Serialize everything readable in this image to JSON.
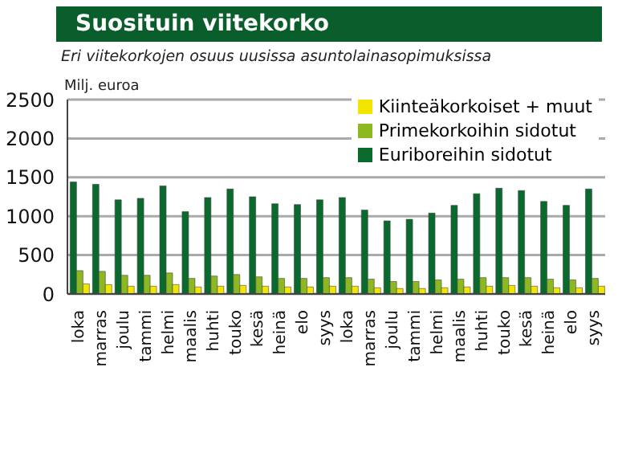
{
  "chart_data": {
    "type": "bar",
    "title": "Suosituin viitekorko",
    "subtitle": "Eri viitekorkojen osuus uusissa asuntolainasopimuksissa",
    "ylabel": "Milj. euroa",
    "categories": [
      "loka",
      "marras",
      "joulu",
      "tammi",
      "helmi",
      "maalis",
      "huhti",
      "touko",
      "kesä",
      "heinä",
      "elo",
      "syys",
      "loka",
      "marras",
      "joulu",
      "tammi",
      "helmi",
      "maalis",
      "huhti",
      "touko",
      "kesä",
      "heinä",
      "elo",
      "syys"
    ],
    "series": [
      {
        "name": "Kiinteäkorkoiset + muut",
        "color": "#f2e600",
        "values": [
          130,
          120,
          100,
          100,
          120,
          90,
          100,
          110,
          100,
          90,
          90,
          100,
          100,
          80,
          70,
          70,
          80,
          90,
          100,
          110,
          100,
          80,
          80,
          100
        ]
      },
      {
        "name": "Primekorkoihin sidotut",
        "color": "#8cb820",
        "values": [
          300,
          290,
          240,
          240,
          270,
          200,
          230,
          250,
          220,
          200,
          200,
          210,
          210,
          190,
          160,
          160,
          180,
          190,
          210,
          210,
          210,
          190,
          180,
          200
        ]
      },
      {
        "name": "Euriboreihin sidotut",
        "color": "#0a6a2e",
        "values": [
          1440,
          1410,
          1210,
          1230,
          1390,
          1060,
          1240,
          1350,
          1250,
          1160,
          1150,
          1210,
          1240,
          1080,
          940,
          960,
          1040,
          1140,
          1290,
          1360,
          1330,
          1190,
          1140,
          1350
        ]
      }
    ],
    "ylim": [
      0,
      2500
    ],
    "yticks": [
      0,
      500,
      1000,
      1500,
      2000,
      2500
    ],
    "grid": "y",
    "legend": "top right"
  }
}
